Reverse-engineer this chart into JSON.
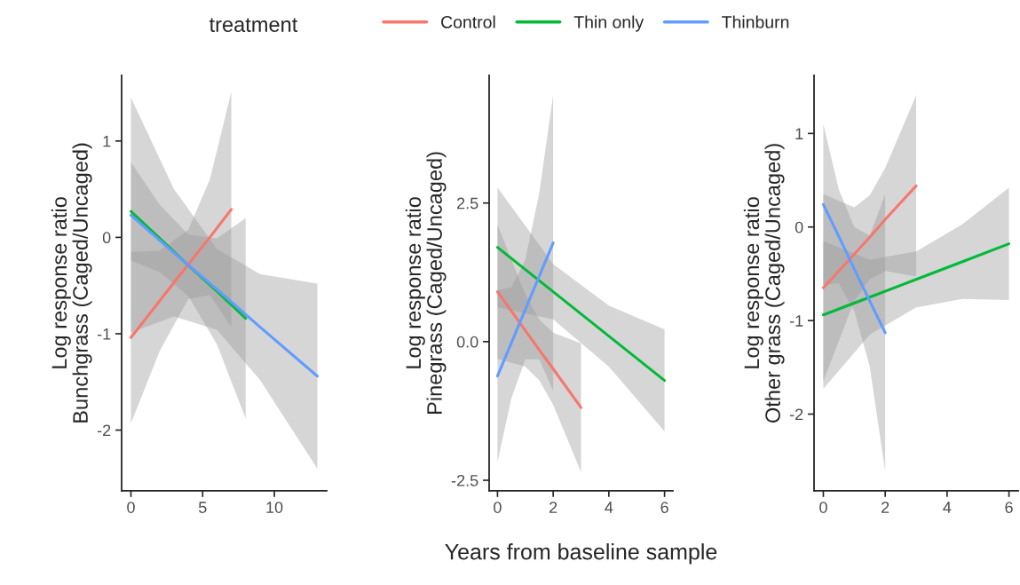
{
  "chart_data": [
    {
      "type": "line",
      "ylabel": "Log response ratio\nBunchgrass (Caged/Uncaged)",
      "legend": "top",
      "legend_title": "treatment",
      "xlim": [
        -0.65,
        13.65
      ],
      "xticks": [
        0,
        5,
        10
      ],
      "ylim": [
        -2.63,
        1.68
      ],
      "yticks": [
        -2,
        -1,
        0,
        1
      ],
      "grid": false,
      "series": [
        {
          "name": "Control",
          "color": "#f8766d",
          "x": [
            0,
            2,
            4,
            5.5,
            7
          ],
          "values": [
            -1.04,
            -0.66,
            -0.28,
            0.0,
            0.29
          ],
          "lower": [
            -1.93,
            -1.18,
            -0.64,
            -0.6,
            -0.93
          ],
          "upper": [
            -0.15,
            -0.14,
            0.08,
            0.6,
            1.51
          ]
        },
        {
          "name": "Thin only",
          "color": "#00ba38",
          "x": [
            0,
            2,
            4,
            6,
            8
          ],
          "values": [
            0.27,
            -0.01,
            -0.29,
            -0.56,
            -0.84
          ],
          "lower": [
            -0.24,
            -0.36,
            -0.61,
            -1.11,
            -1.88
          ],
          "upper": [
            0.78,
            0.34,
            0.03,
            -0.01,
            0.2
          ]
        },
        {
          "name": "Thinburn",
          "color": "#619cff",
          "x": [
            0,
            3,
            6,
            9,
            13
          ],
          "values": [
            0.23,
            -0.16,
            -0.54,
            -0.93,
            -1.44
          ],
          "lower": [
            -0.99,
            -0.82,
            -0.96,
            -1.48,
            -2.4
          ],
          "upper": [
            1.45,
            0.5,
            -0.12,
            -0.38,
            -0.48
          ]
        }
      ]
    },
    {
      "type": "line",
      "ylabel": "Log response ratio\nPinegrass (Caged/Uncaged)",
      "xlabel": "Years from baseline sample",
      "xlim": [
        -0.3,
        6.3
      ],
      "xticks": [
        0,
        2,
        4,
        6
      ],
      "ylim": [
        -2.69,
        4.8
      ],
      "yticks": [
        {
          "value": -2.5,
          "label": "-2.5"
        },
        {
          "value": 0,
          "label": "0.0"
        },
        2.5
      ],
      "grid": false,
      "series": [
        {
          "name": "Control",
          "color": "#f8766d",
          "x": [
            0,
            1,
            1.5,
            2,
            3
          ],
          "values": [
            0.9,
            0.2,
            -0.15,
            -0.49,
            -1.19
          ],
          "lower": [
            -0.31,
            -0.45,
            -0.7,
            -1.14,
            -2.35
          ],
          "upper": [
            2.11,
            0.85,
            0.4,
            0.16,
            -0.03
          ]
        },
        {
          "name": "Thin only",
          "color": "#00ba38",
          "x": [
            0,
            2,
            4,
            6
          ],
          "values": [
            1.7,
            0.9,
            0.1,
            -0.7
          ],
          "lower": [
            0.62,
            0.4,
            -0.45,
            -1.62
          ],
          "upper": [
            2.78,
            1.4,
            0.65,
            0.22
          ]
        },
        {
          "name": "Thinburn",
          "color": "#619cff",
          "x": [
            0,
            0.5,
            1,
            1.5,
            2
          ],
          "values": [
            -0.62,
            -0.02,
            0.58,
            1.18,
            1.78
          ],
          "lower": [
            -2.17,
            -1.02,
            -0.32,
            -0.32,
            -0.89
          ],
          "upper": [
            0.93,
            0.98,
            1.48,
            2.68,
            4.45
          ]
        }
      ]
    },
    {
      "type": "line",
      "ylabel": "Log response ratio\nOther grass (Caged/Uncaged)",
      "xlim": [
        -0.3,
        6.3
      ],
      "xticks": [
        0,
        2,
        4,
        6
      ],
      "ylim": [
        -2.82,
        1.62
      ],
      "yticks": [
        -2,
        -1,
        0,
        1
      ],
      "grid": false,
      "series": [
        {
          "name": "Control",
          "color": "#f8766d",
          "x": [
            0,
            1,
            1.5,
            2,
            3
          ],
          "values": [
            -0.65,
            -0.29,
            -0.11,
            0.08,
            0.44
          ],
          "lower": [
            -1.65,
            -0.79,
            -0.56,
            -0.47,
            -0.53
          ],
          "upper": [
            0.35,
            0.21,
            0.34,
            0.63,
            1.41
          ]
        },
        {
          "name": "Thin only",
          "color": "#00ba38",
          "x": [
            0,
            1.5,
            3,
            4.5,
            6
          ],
          "values": [
            -0.94,
            -0.75,
            -0.56,
            -0.37,
            -0.18
          ],
          "lower": [
            -1.73,
            -1.15,
            -0.86,
            -0.77,
            -0.78
          ],
          "upper": [
            -0.15,
            -0.35,
            -0.26,
            0.03,
            0.42
          ]
        },
        {
          "name": "Thinburn",
          "color": "#619cff",
          "x": [
            0,
            0.5,
            1,
            1.5,
            2
          ],
          "values": [
            0.24,
            -0.1,
            -0.45,
            -0.79,
            -1.13
          ],
          "lower": [
            -0.62,
            -0.6,
            -0.9,
            -1.49,
            -2.61
          ],
          "upper": [
            1.1,
            0.4,
            0.0,
            -0.09,
            0.35
          ]
        }
      ]
    }
  ]
}
